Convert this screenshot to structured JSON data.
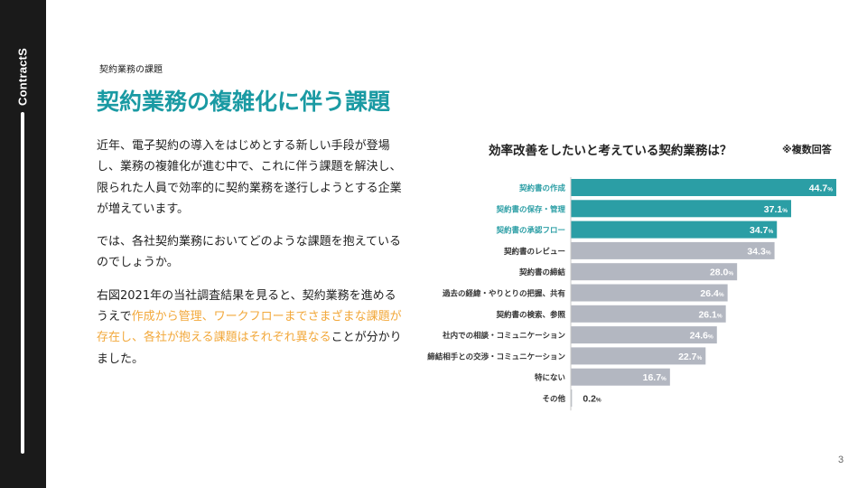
{
  "brand": "ContractS",
  "section_label": "契約業務の課題",
  "title": "契約業務の複雑化に伴う課題",
  "paragraphs": {
    "p1": "近年、電子契約の導入をはじめとする新しい手段が登場し、業務の複雑化が進む中で、これに伴う課題を解決し、限られた人員で効率的に契約業務を遂行しようとする企業が増えています。",
    "p2": "では、各社契約業務においてどのような課題を抱えているのでしょうか。",
    "p3_before": "右図2021年の当社調査結果を見ると、契約業務を進めるうえで",
    "p3_highlight": "作成から管理、ワークフローまでさまざまな課題が存在し、各社が抱える課題はそれぞれ異なる",
    "p3_after": "ことが分かりました。"
  },
  "highlight_color": "#f2a83b",
  "title_color": "#1a9aa3",
  "chart_data": {
    "type": "bar",
    "orientation": "horizontal",
    "title": "効率改善をしたいと考えている契約業務は？",
    "note": "※複数回答",
    "categories": [
      "契約書の作成",
      "契約書の保存・管理",
      "契約書の承認フロー",
      "契約書のレビュー",
      "契約書の締結",
      "過去の経緯・やりとりの把握、共有",
      "契約書の検索、参照",
      "社内での相談・コミュニケーション",
      "締結相手との交渉・コミュニケーション",
      "特にない",
      "その他"
    ],
    "values": [
      44.7,
      37.1,
      34.7,
      34.3,
      28.0,
      26.4,
      26.1,
      24.6,
      22.7,
      16.7,
      0.2
    ],
    "value_labels": [
      "44.7",
      "37.1",
      "34.7",
      "34.3",
      "28.0",
      "26.4",
      "26.1",
      "24.6",
      "22.7",
      "16.7",
      "0.2"
    ],
    "unit": "%",
    "highlighted_count": 3,
    "colors": {
      "highlight_bar": "#2b9ea5",
      "highlight_label": "#2b9ea5",
      "normal_bar": "#b3b7c1",
      "normal_label": "#333333",
      "axis": "#c8c8c8"
    }
  },
  "page_number": "3"
}
